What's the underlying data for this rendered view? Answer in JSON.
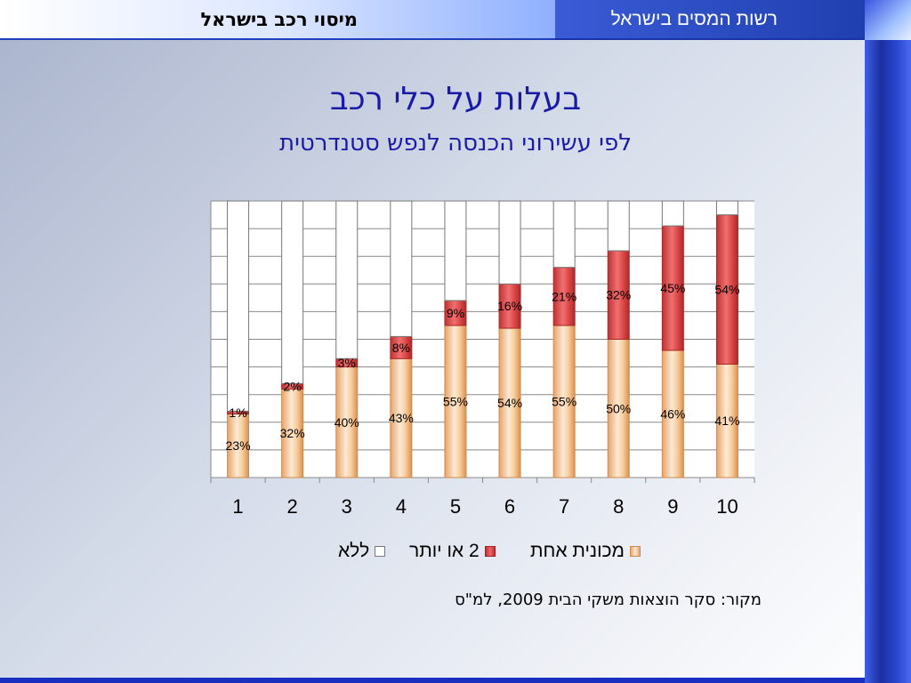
{
  "header": {
    "left_title": "מיסוי רכב בישראל",
    "right_title": "רשות המסים בישראל"
  },
  "title": "בעלות על כלי רכב",
  "subtitle": "לפי עשירוני הכנסה לנפש סטנדרטית",
  "source": "מקור: סקר הוצאות משקי הבית 2009, למ\"ס",
  "colors": {
    "one_car": "#f5c896",
    "two_plus": "#d94040",
    "none": "#ffffff"
  },
  "chart_data": {
    "type": "bar",
    "stacked": true,
    "categories": [
      "1",
      "2",
      "3",
      "4",
      "5",
      "6",
      "7",
      "8",
      "9",
      "10"
    ],
    "series": [
      {
        "name": "מכונית אחת",
        "values": [
          23,
          32,
          40,
          43,
          55,
          54,
          55,
          50,
          46,
          41
        ],
        "labels": [
          "23%",
          "32%",
          "40%",
          "43%",
          "55%",
          "54%",
          "55%",
          "50%",
          "46%",
          "41%"
        ]
      },
      {
        "name": "2 או יותר",
        "values": [
          1,
          2,
          3,
          8,
          9,
          16,
          21,
          32,
          45,
          54
        ],
        "labels": [
          "1%",
          "2%",
          "3%",
          "8%",
          "9%",
          "16%",
          "21%",
          "32%",
          "45%",
          "54%"
        ]
      },
      {
        "name": "ללא",
        "values": [
          76,
          66,
          57,
          49,
          36,
          30,
          24,
          18,
          9,
          5
        ]
      }
    ],
    "ylim": [
      0,
      100
    ],
    "grid": true,
    "legend": "bottom"
  }
}
